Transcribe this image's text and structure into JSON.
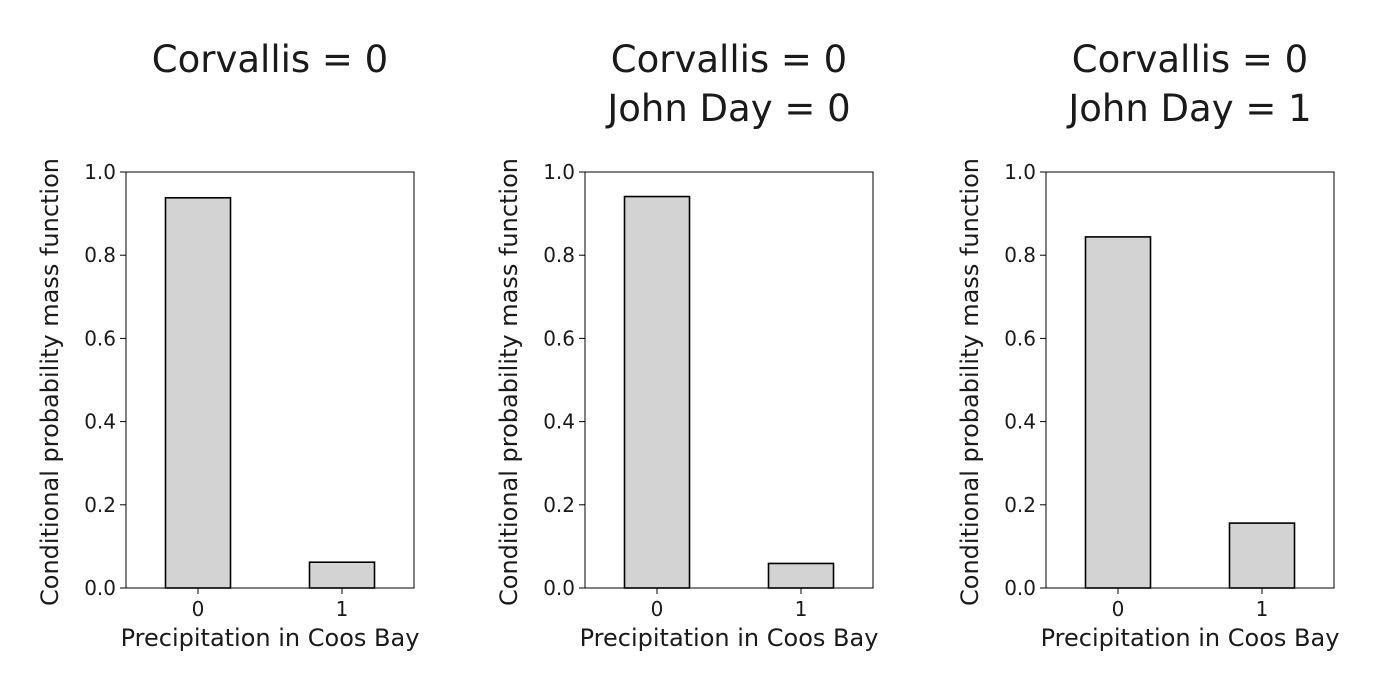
{
  "chart_data": [
    {
      "type": "bar",
      "title": [
        "Corvallis = 0"
      ],
      "xlabel": "Precipitation in Coos Bay",
      "ylabel": "Conditional probability mass function",
      "categories": [
        "0",
        "1"
      ],
      "values": [
        0.938,
        0.062
      ],
      "ylim": [
        0,
        1.0
      ],
      "yticks": [
        "0.0",
        "0.2",
        "0.4",
        "0.6",
        "0.8",
        "1.0"
      ],
      "grid": false,
      "bar_color": "#d3d3d3",
      "edge_color": "#000000"
    },
    {
      "type": "bar",
      "title": [
        "Corvallis = 0",
        "John Day = 0"
      ],
      "xlabel": "Precipitation in Coos Bay",
      "ylabel": "Conditional probability mass function",
      "categories": [
        "0",
        "1"
      ],
      "values": [
        0.941,
        0.059
      ],
      "ylim": [
        0,
        1.0
      ],
      "yticks": [
        "0.0",
        "0.2",
        "0.4",
        "0.6",
        "0.8",
        "1.0"
      ],
      "grid": false,
      "bar_color": "#d3d3d3",
      "edge_color": "#000000"
    },
    {
      "type": "bar",
      "title": [
        "Corvallis = 0",
        "John Day = 1"
      ],
      "xlabel": "Precipitation in Coos Bay",
      "ylabel": "Conditional probability mass function",
      "categories": [
        "0",
        "1"
      ],
      "values": [
        0.844,
        0.156
      ],
      "ylim": [
        0,
        1.0
      ],
      "yticks": [
        "0.0",
        "0.2",
        "0.4",
        "0.6",
        "0.8",
        "1.0"
      ],
      "grid": false,
      "bar_color": "#d3d3d3",
      "edge_color": "#000000"
    }
  ]
}
